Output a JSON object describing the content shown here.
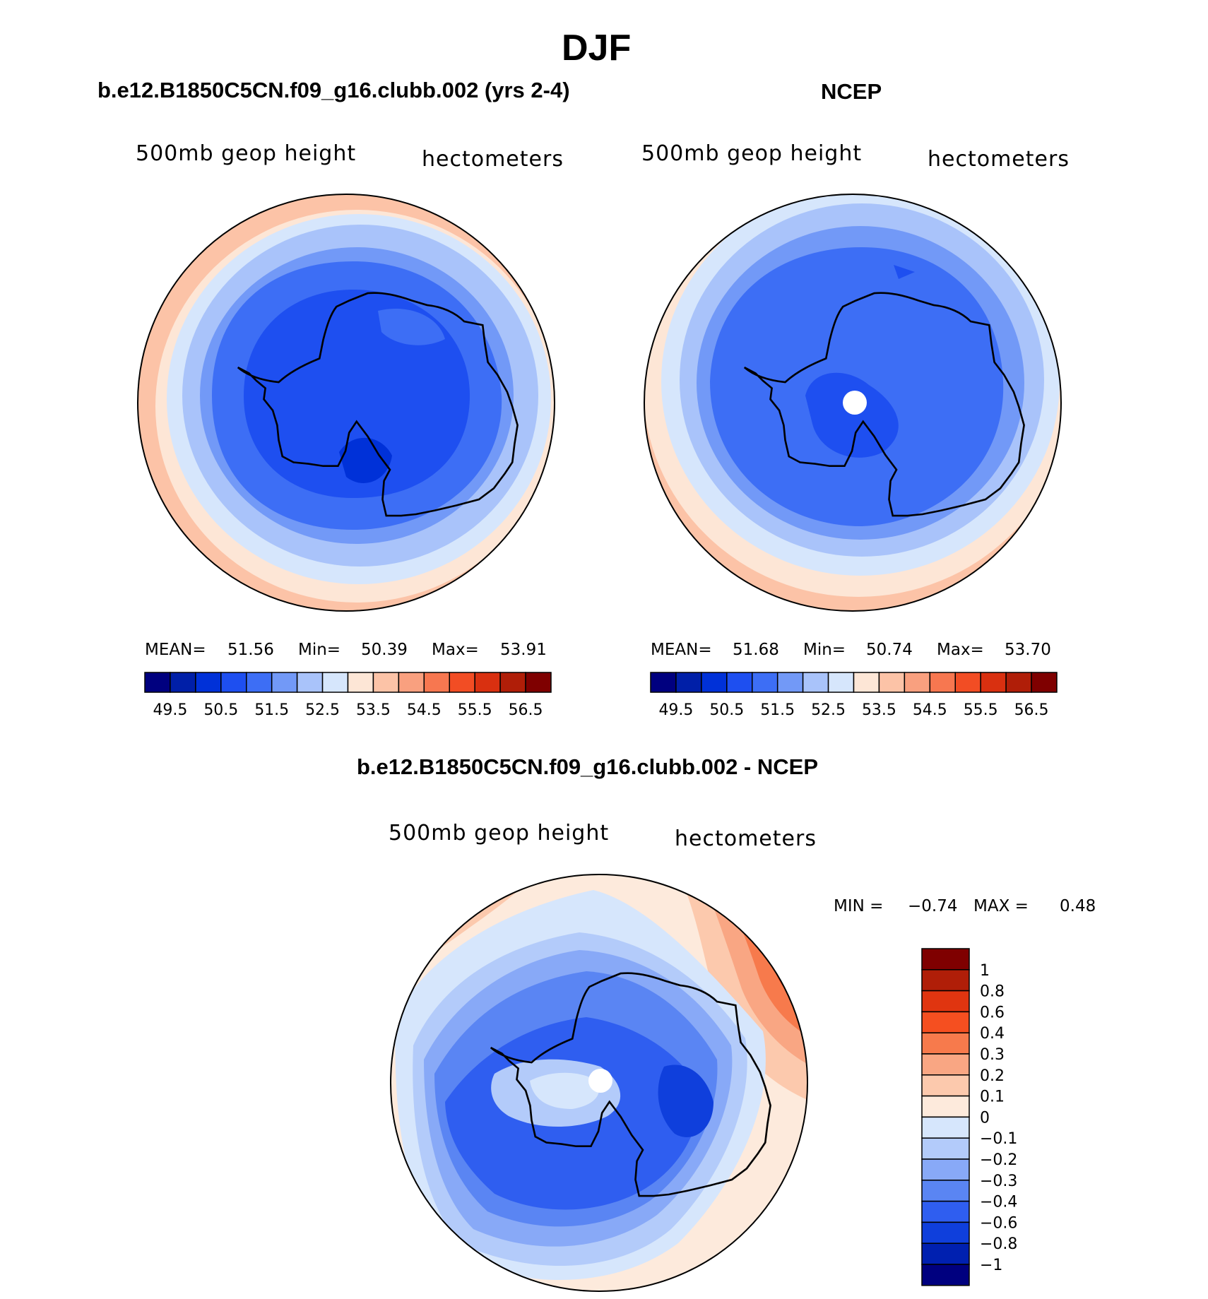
{
  "page_title": "DJF",
  "panels": [
    {
      "title": "b.e12.B1850C5CN.f09_g16.clubb.002 (yrs 2-4)",
      "left_label": "500mb geop height",
      "right_label": "hectometers",
      "stats": {
        "mean_label": "MEAN=",
        "mean": "51.56",
        "min_label": "Min=",
        "min": "50.39",
        "max_label": "Max=",
        "max": "53.91"
      }
    },
    {
      "title": "NCEP",
      "left_label": "500mb geop height",
      "right_label": "hectometers",
      "stats": {
        "mean_label": "MEAN=",
        "mean": "51.68",
        "min_label": "Min=",
        "min": "50.74",
        "max_label": "Max=",
        "max": "53.70"
      }
    },
    {
      "title": "b.e12.B1850C5CN.f09_g16.clubb.002 - NCEP",
      "left_label": "500mb geop height",
      "right_label": "hectometers",
      "stats": {
        "min_label": "MIN =",
        "min": "−0.74",
        "max_label": "MAX =",
        "max": "0.48"
      }
    }
  ],
  "colorbar_abs": {
    "labels": [
      "49.5",
      "50.5",
      "51.5",
      "52.5",
      "53.5",
      "54.5",
      "55.5",
      "56.5"
    ],
    "colors": [
      "#00007f",
      "#001fa8",
      "#0031d8",
      "#1e4ff0",
      "#3d6ef5",
      "#7299f7",
      "#a9c3fa",
      "#d6e6fc",
      "#fde6d6",
      "#fcc3a7",
      "#f9a07f",
      "#f77750",
      "#f24d24",
      "#d93010",
      "#b01e08",
      "#7f0000"
    ]
  },
  "colorbar_diff": {
    "labels": [
      "1",
      "0.8",
      "0.6",
      "0.4",
      "0.3",
      "0.2",
      "0.1",
      "0",
      "−0.1",
      "−0.2",
      "−0.3",
      "−0.4",
      "−0.6",
      "−0.8",
      "−1"
    ],
    "colors": [
      "#7f0000",
      "#b01e08",
      "#e03510",
      "#f54f20",
      "#f77a4c",
      "#f9a683",
      "#fcc9ad",
      "#fdeadc",
      "#d6e6fc",
      "#b3cbfa",
      "#88a9f7",
      "#5a85f3",
      "#2f5ef0",
      "#0f3fdc",
      "#0020b0",
      "#00007f"
    ]
  }
}
